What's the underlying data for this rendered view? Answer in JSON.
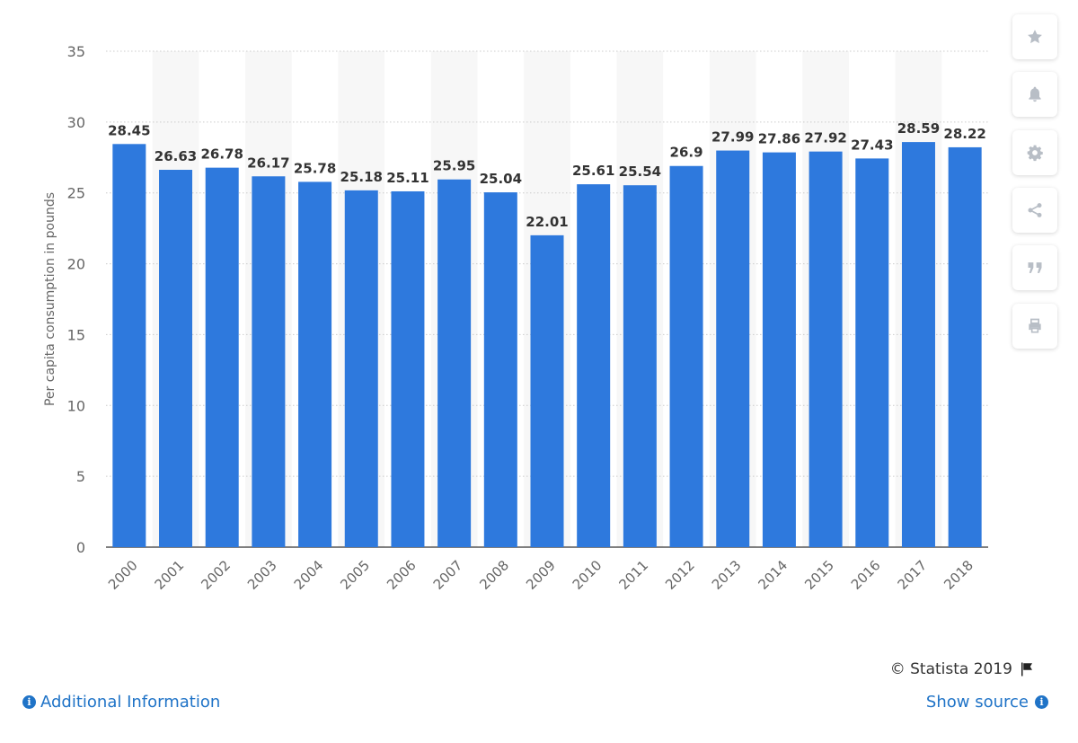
{
  "chart_data": {
    "type": "bar",
    "categories": [
      "2000",
      "2001",
      "2002",
      "2003",
      "2004",
      "2005",
      "2006",
      "2007",
      "2008",
      "2009",
      "2010",
      "2011",
      "2012",
      "2013",
      "2014",
      "2015",
      "2016",
      "2017",
      "2018"
    ],
    "values": [
      28.45,
      26.63,
      26.78,
      26.17,
      25.78,
      25.18,
      25.11,
      25.95,
      25.04,
      22.01,
      25.61,
      25.54,
      26.9,
      27.99,
      27.86,
      27.92,
      27.43,
      28.59,
      28.22
    ],
    "value_labels": [
      "28.45",
      "26.63",
      "26.78",
      "26.17",
      "25.78",
      "25.18",
      "25.11",
      "25.95",
      "25.04",
      "22.01",
      "25.61",
      "25.54",
      "26.9",
      "27.99",
      "27.86",
      "27.92",
      "27.43",
      "28.59",
      "28.22"
    ],
    "ylabel": "Per capita consumption in pounds",
    "xlabel": "",
    "ylim": [
      0,
      35
    ],
    "yticks": [
      "0",
      "5",
      "10",
      "15",
      "20",
      "25",
      "30",
      "35"
    ],
    "colors": {
      "bar": "#2e79dd",
      "grid": "#cccccc",
      "band": "#f7f7f7",
      "label": "#333333",
      "tick": "#666666"
    }
  },
  "credit": {
    "text": "© Statista 2019"
  },
  "footer": {
    "additional_info": "Additional Information",
    "show_source": "Show source"
  },
  "sidebar": {
    "icons": [
      "star-icon",
      "bell-icon",
      "gear-icon",
      "share-icon",
      "quote-icon",
      "print-icon"
    ]
  }
}
